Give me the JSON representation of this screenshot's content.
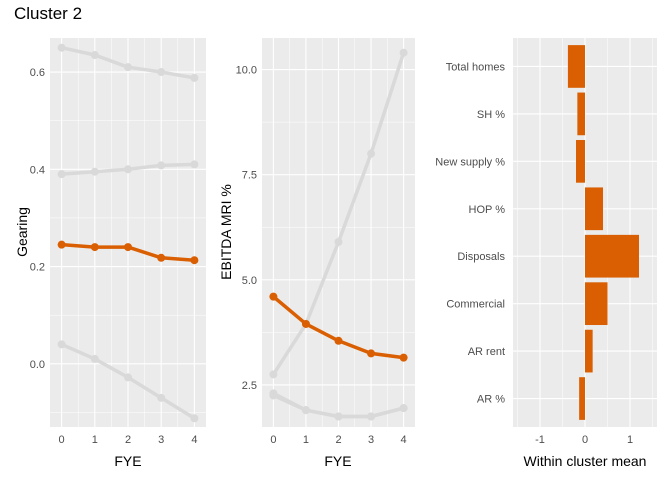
{
  "title": "Cluster 2",
  "colors": {
    "highlight": "#d95f02",
    "other": "#d9d9d9",
    "panel_bg": "#ebebeb",
    "grid": "#ffffff"
  },
  "chart_data": [
    {
      "type": "line",
      "xlabel": "FYE",
      "ylabel": "Gearing",
      "x": [
        0,
        1,
        2,
        3,
        4
      ],
      "xlim": [
        -0.35,
        4.35
      ],
      "ylim": [
        -0.13,
        0.67
      ],
      "yticks": [
        0.0,
        0.2,
        0.4,
        0.6
      ],
      "ytick_labels": [
        "0.0",
        "0.2",
        "0.4",
        "0.6"
      ],
      "xtick_labels": [
        "0",
        "1",
        "2",
        "3",
        "4"
      ],
      "grid": true,
      "series": [
        {
          "highlight": false,
          "values": [
            0.65,
            0.635,
            0.61,
            0.6,
            0.588
          ]
        },
        {
          "highlight": false,
          "values": [
            0.39,
            0.395,
            0.4,
            0.408,
            0.41
          ]
        },
        {
          "highlight": true,
          "values": [
            0.245,
            0.24,
            0.24,
            0.218,
            0.213
          ]
        },
        {
          "highlight": false,
          "values": [
            0.04,
            0.01,
            -0.028,
            -0.07,
            -0.112
          ]
        }
      ]
    },
    {
      "type": "line",
      "xlabel": "FYE",
      "ylabel": "EBITDA MRI %",
      "x": [
        0,
        1,
        2,
        3,
        4
      ],
      "xlim": [
        -0.35,
        4.35
      ],
      "ylim": [
        1.5,
        10.75
      ],
      "yticks": [
        2.5,
        5.0,
        7.5,
        10.0
      ],
      "ytick_labels": [
        "2.5",
        "5.0",
        "7.5",
        "10.0"
      ],
      "xtick_labels": [
        "0",
        "1",
        "2",
        "3",
        "4"
      ],
      "grid": true,
      "series": [
        {
          "highlight": false,
          "values": [
            2.75,
            3.95,
            5.9,
            8.0,
            10.4
          ]
        },
        {
          "highlight": true,
          "values": [
            4.6,
            3.95,
            3.55,
            3.25,
            3.15
          ]
        },
        {
          "highlight": false,
          "values": [
            2.3,
            1.9,
            1.75,
            1.75,
            1.95
          ]
        },
        {
          "highlight": false,
          "values": [
            2.25,
            1.9,
            1.75,
            1.75,
            1.95
          ]
        }
      ]
    },
    {
      "type": "bar",
      "orientation": "horizontal",
      "xlabel": "Within cluster mean",
      "categories": [
        "Total homes",
        "SH %",
        "New supply %",
        "HOP %",
        "Disposals",
        "Commercial",
        "AR rent",
        "AR %"
      ],
      "values": [
        -0.38,
        -0.17,
        -0.2,
        0.4,
        1.2,
        0.5,
        0.17,
        -0.13
      ],
      "xlim": [
        -1.6,
        1.6
      ],
      "xticks": [
        -1,
        0,
        1
      ],
      "xtick_labels": [
        "-1",
        "0",
        "1"
      ],
      "grid": true
    }
  ]
}
